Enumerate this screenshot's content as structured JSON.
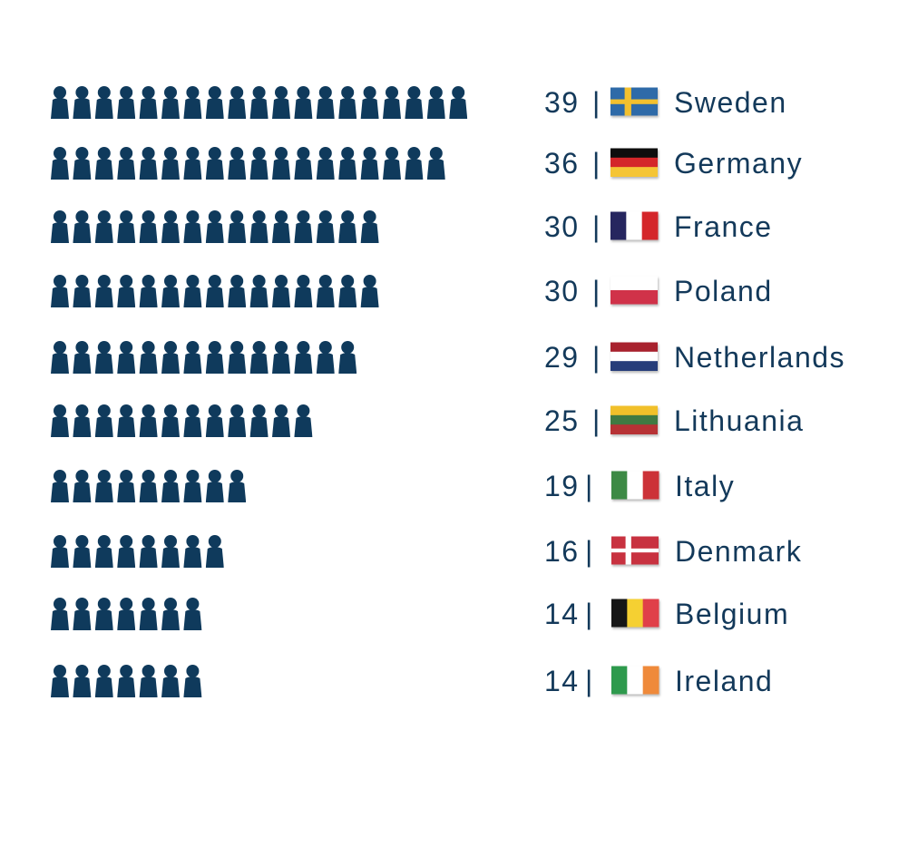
{
  "chart_data": {
    "type": "pictogram-bar",
    "title": "",
    "separator": "|",
    "colors": {
      "icon": "#0f3a5c",
      "text": "#13395a"
    },
    "rows": [
      {
        "country": "Sweden",
        "value": 39,
        "flag": "sweden-flag"
      },
      {
        "country": "Germany",
        "value": 36,
        "flag": "germany-flag"
      },
      {
        "country": "France",
        "value": 30,
        "flag": "france-flag"
      },
      {
        "country": "Poland",
        "value": 30,
        "flag": "poland-flag"
      },
      {
        "country": "Netherlands",
        "value": 29,
        "flag": "netherlands-flag"
      },
      {
        "country": "Lithuania",
        "value": 25,
        "flag": "lithuania-flag"
      },
      {
        "country": "Italy",
        "value": 19,
        "flag": "italy-flag"
      },
      {
        "country": "Denmark",
        "value": 16,
        "flag": "denmark-flag"
      },
      {
        "country": "Belgium",
        "value": 14,
        "flag": "belgium-flag"
      },
      {
        "country": "Ireland",
        "value": 14,
        "flag": "ireland-flag"
      }
    ]
  }
}
